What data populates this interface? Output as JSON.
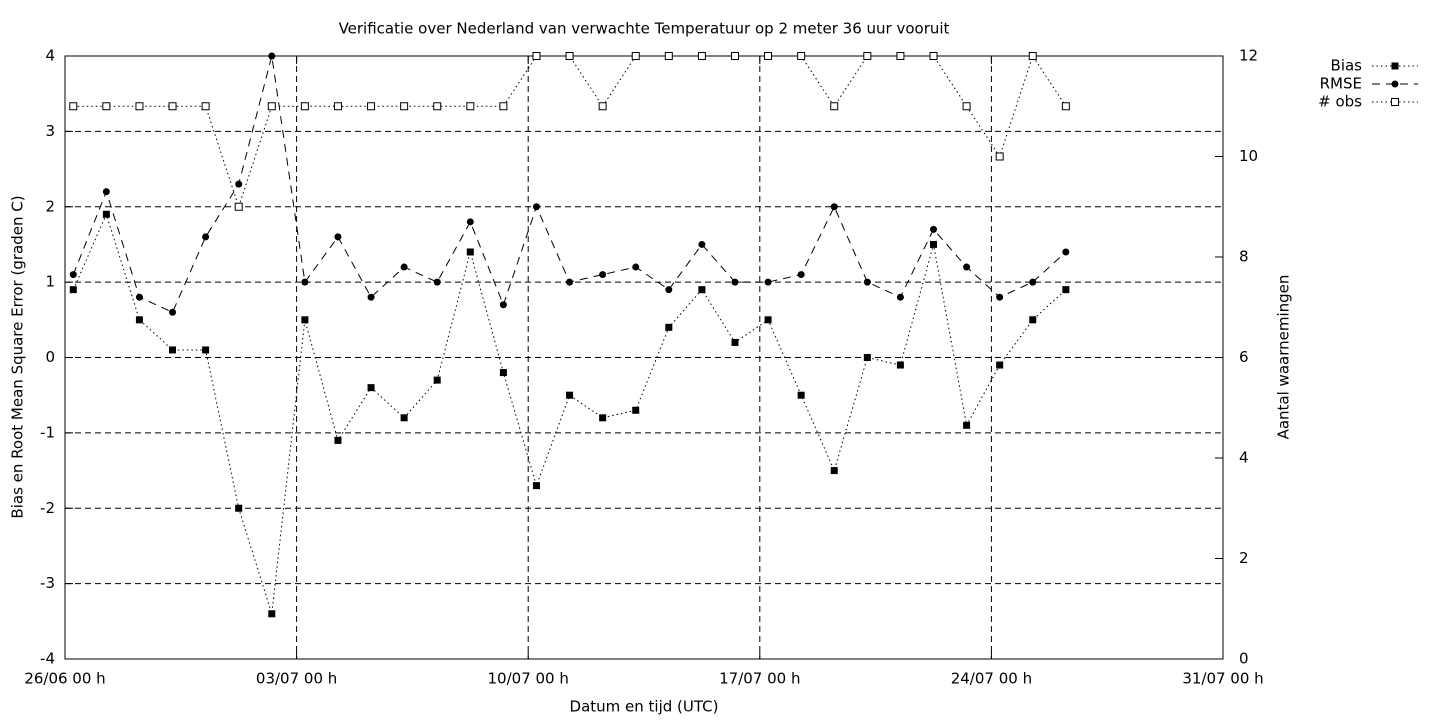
{
  "chart_data": {
    "type": "line",
    "title": "Verificatie over Nederland van verwachte Temperatuur op 2 meter 36 uur vooruit",
    "xlabel": "Datum en tijd (UTC)",
    "ylabel": "Bias en Root Mean Square Error (graden C)",
    "y2label": "Aantal waarnemingen",
    "x": [
      0.25,
      1.25,
      2.25,
      3.25,
      4.25,
      5.25,
      6.25,
      7.25,
      8.25,
      9.25,
      10.25,
      11.25,
      12.25,
      13.25,
      14.25,
      15.25,
      16.25,
      17.25,
      18.25,
      19.25,
      20.25,
      21.25,
      22.25,
      23.25,
      24.25,
      25.25,
      26.25,
      27.25,
      28.25,
      29.25,
      30.25
    ],
    "xlim": [
      0,
      35
    ],
    "xticks": [
      {
        "value": 0,
        "label": "26/06 00 h"
      },
      {
        "value": 7,
        "label": "03/07 00 h"
      },
      {
        "value": 14,
        "label": "10/07 00 h"
      },
      {
        "value": 21,
        "label": "17/07 00 h"
      },
      {
        "value": 28,
        "label": "24/07 00 h"
      },
      {
        "value": 35,
        "label": "31/07 00 h"
      }
    ],
    "ylim": [
      -4,
      4
    ],
    "yticks": [
      -4,
      -3,
      -2,
      -1,
      0,
      1,
      2,
      3,
      4
    ],
    "y2lim": [
      0,
      12
    ],
    "y2ticks": [
      0,
      2,
      4,
      6,
      8,
      10,
      12
    ],
    "grid": true,
    "legend": "top-right",
    "series": [
      {
        "name": "Bias",
        "color": "#000000",
        "dash": "dotted",
        "marker": "filled-square",
        "values": [
          0.9,
          1.9,
          0.5,
          0.1,
          0.1,
          -2.0,
          -3.4,
          0.5,
          -1.1,
          -0.4,
          -0.8,
          -0.3,
          1.4,
          -0.2,
          -1.7,
          -0.5,
          -0.8,
          -0.7,
          0.4,
          0.9,
          0.2,
          0.5,
          -0.5,
          -1.5,
          0.0,
          -0.1,
          1.5,
          -0.9,
          -0.1,
          0.5,
          0.9
        ]
      },
      {
        "name": "RMSE",
        "color": "#000000",
        "dash": "dashed",
        "marker": "filled-circle",
        "values": [
          1.1,
          2.2,
          0.8,
          0.6,
          1.6,
          2.3,
          4.0,
          1.0,
          1.6,
          0.8,
          1.2,
          1.0,
          1.8,
          0.7,
          2.0,
          1.0,
          1.1,
          1.2,
          0.9,
          1.5,
          1.0,
          1.0,
          1.1,
          2.0,
          1.0,
          0.8,
          1.7,
          1.2,
          0.8,
          1.0,
          1.4
        ]
      },
      {
        "name": "# obs",
        "color": "#000000",
        "dash": "dotted",
        "marker": "open-square",
        "axis": "y2",
        "values": [
          11,
          11,
          11,
          11,
          11,
          9,
          11,
          11,
          11,
          11,
          11,
          11,
          11,
          11,
          12,
          12,
          11,
          12,
          12,
          12,
          12,
          12,
          12,
          11,
          12,
          12,
          12,
          11,
          10,
          12,
          11
        ]
      }
    ]
  }
}
